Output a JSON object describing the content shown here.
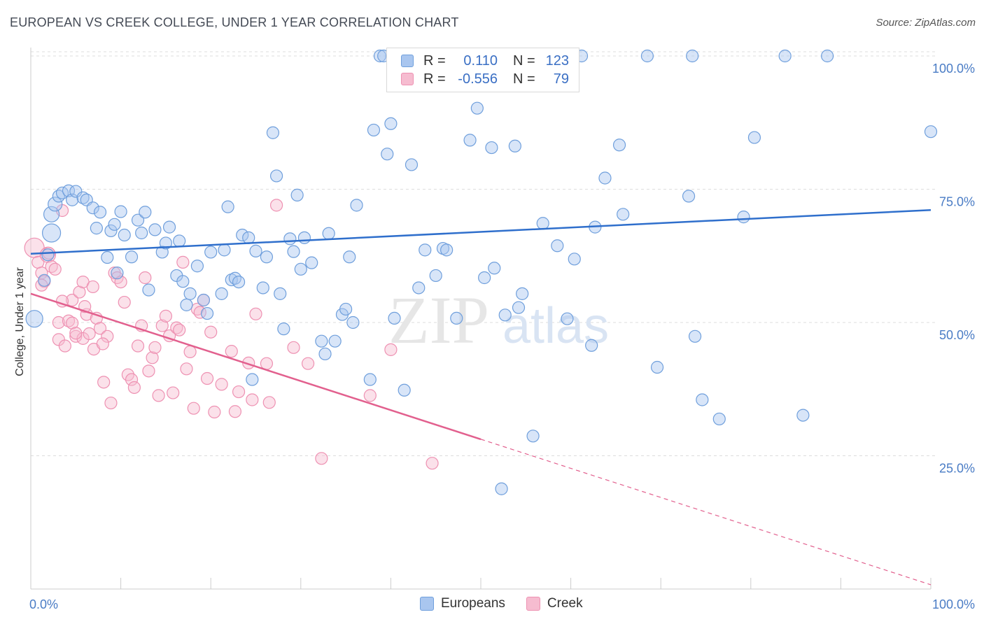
{
  "title": "EUROPEAN VS CREEK COLLEGE, UNDER 1 YEAR CORRELATION CHART",
  "source": "Source: ZipAtlas.com",
  "watermark": {
    "zip": "ZIP",
    "atlas": "atlas"
  },
  "legend_top": {
    "rows": [
      {
        "r_label": "R =",
        "r_value": "0.110",
        "n_label": "N =",
        "n_value": "123"
      },
      {
        "r_label": "R =",
        "r_value": "-0.556",
        "n_label": "N =",
        "n_value": "79"
      }
    ]
  },
  "legend_bottom": {
    "items": [
      "Europeans",
      "Creek"
    ]
  },
  "colors": {
    "europeans_fill": "#a9c6ef",
    "europeans_stroke": "#6f9fdc",
    "europeans_line": "#2f6fcc",
    "creek_fill": "#f6bcd0",
    "creek_stroke": "#ee91b2",
    "creek_line": "#e2608e",
    "grid": "#dddddd",
    "axis": "#cccccc",
    "tick_text": "#4a7cc5"
  },
  "chart_data": {
    "type": "scatter",
    "title": "EUROPEAN VS CREEK COLLEGE, UNDER 1 YEAR CORRELATION CHART",
    "xlabel": "",
    "ylabel": "College, Under 1 year",
    "xlim": [
      0,
      100
    ],
    "ylim": [
      0,
      100
    ],
    "x_tick_labels": [
      "0.0%",
      "100.0%"
    ],
    "y_tick_labels": [
      "25.0%",
      "50.0%",
      "75.0%",
      "100.0%"
    ],
    "y_ticks": [
      25,
      50,
      75,
      100
    ],
    "grid": true,
    "legend_position": "top-center",
    "series": [
      {
        "name": "Europeans",
        "r": 0.11,
        "n": 123,
        "trend": {
          "x": [
            0,
            100
          ],
          "y": [
            62.9,
            71.1
          ],
          "dashed_from": null
        },
        "points": [
          [
            0.4,
            50.7
          ],
          [
            1.5,
            57.9
          ],
          [
            1.9,
            62.7
          ],
          [
            2.3,
            66.8
          ],
          [
            2.3,
            70.3
          ],
          [
            2.7,
            72.2
          ],
          [
            3.1,
            73.7
          ],
          [
            3.5,
            74.3
          ],
          [
            4.2,
            74.7
          ],
          [
            4.6,
            73.0
          ],
          [
            5.0,
            74.6
          ],
          [
            5.8,
            73.4
          ],
          [
            6.2,
            73.0
          ],
          [
            6.9,
            71.5
          ],
          [
            7.3,
            67.7
          ],
          [
            7.7,
            70.7
          ],
          [
            8.5,
            62.2
          ],
          [
            8.9,
            67.2
          ],
          [
            9.3,
            68.4
          ],
          [
            9.6,
            59.3
          ],
          [
            10.0,
            70.8
          ],
          [
            10.4,
            66.4
          ],
          [
            11.2,
            62.3
          ],
          [
            11.9,
            69.2
          ],
          [
            12.3,
            66.8
          ],
          [
            12.7,
            70.7
          ],
          [
            13.1,
            56.1
          ],
          [
            13.8,
            67.4
          ],
          [
            14.6,
            63.2
          ],
          [
            15.0,
            64.9
          ],
          [
            15.4,
            67.9
          ],
          [
            16.2,
            58.8
          ],
          [
            16.5,
            65.3
          ],
          [
            16.9,
            57.7
          ],
          [
            17.3,
            53.3
          ],
          [
            17.7,
            55.4
          ],
          [
            18.5,
            60.6
          ],
          [
            19.2,
            54.2
          ],
          [
            19.6,
            51.7
          ],
          [
            20.0,
            63.2
          ],
          [
            21.2,
            55.4
          ],
          [
            21.5,
            63.6
          ],
          [
            21.9,
            71.7
          ],
          [
            22.3,
            58.0
          ],
          [
            22.7,
            58.3
          ],
          [
            23.1,
            57.6
          ],
          [
            23.5,
            66.4
          ],
          [
            24.2,
            65.9
          ],
          [
            24.6,
            39.3
          ],
          [
            25.0,
            63.4
          ],
          [
            25.8,
            56.5
          ],
          [
            26.2,
            62.3
          ],
          [
            26.9,
            85.6
          ],
          [
            27.3,
            77.5
          ],
          [
            27.7,
            55.4
          ],
          [
            28.1,
            48.8
          ],
          [
            28.8,
            65.7
          ],
          [
            29.2,
            63.3
          ],
          [
            29.6,
            73.9
          ],
          [
            30.0,
            60.0
          ],
          [
            30.4,
            65.9
          ],
          [
            31.2,
            61.2
          ],
          [
            32.3,
            46.5
          ],
          [
            32.7,
            44.1
          ],
          [
            33.1,
            66.7
          ],
          [
            33.8,
            46.5
          ],
          [
            34.6,
            51.5
          ],
          [
            35.0,
            52.5
          ],
          [
            35.4,
            62.3
          ],
          [
            35.8,
            50.0
          ],
          [
            36.2,
            72.0
          ],
          [
            37.7,
            39.3
          ],
          [
            38.1,
            86.1
          ],
          [
            38.8,
            100
          ],
          [
            39.2,
            100
          ],
          [
            39.6,
            81.6
          ],
          [
            40.0,
            87.3
          ],
          [
            40.4,
            50.8
          ],
          [
            41.5,
            37.3
          ],
          [
            42.3,
            79.6
          ],
          [
            43.1,
            56.5
          ],
          [
            43.8,
            63.6
          ],
          [
            45.0,
            58.8
          ],
          [
            45.8,
            63.9
          ],
          [
            46.2,
            63.6
          ],
          [
            47.3,
            50.8
          ],
          [
            48.1,
            100
          ],
          [
            48.8,
            84.2
          ],
          [
            49.6,
            90.2
          ],
          [
            50.4,
            58.4
          ],
          [
            51.2,
            82.8
          ],
          [
            51.5,
            60.2
          ],
          [
            52.3,
            18.8
          ],
          [
            52.7,
            51.4
          ],
          [
            53.8,
            83.1
          ],
          [
            54.2,
            52.8
          ],
          [
            54.6,
            55.4
          ],
          [
            55.8,
            28.7
          ],
          [
            56.9,
            68.6
          ],
          [
            58.5,
            64.4
          ],
          [
            59.6,
            50.7
          ],
          [
            60.4,
            61.9
          ],
          [
            61.2,
            100
          ],
          [
            62.3,
            45.7
          ],
          [
            62.7,
            67.9
          ],
          [
            63.8,
            77.1
          ],
          [
            65.4,
            83.3
          ],
          [
            65.8,
            70.3
          ],
          [
            68.5,
            100
          ],
          [
            69.6,
            41.6
          ],
          [
            73.1,
            73.7
          ],
          [
            73.5,
            100
          ],
          [
            73.8,
            47.4
          ],
          [
            74.6,
            35.5
          ],
          [
            76.5,
            31.9
          ],
          [
            79.2,
            69.8
          ],
          [
            80.4,
            84.7
          ],
          [
            83.8,
            100
          ],
          [
            85.8,
            32.6
          ],
          [
            88.5,
            100
          ],
          [
            100,
            85.8
          ]
        ]
      },
      {
        "name": "Creek",
        "r": -0.556,
        "n": 79,
        "trend": {
          "x": [
            0,
            100
          ],
          "y": [
            55.4,
            0.8
          ],
          "solid_until_x": 50.0
        },
        "points": [
          [
            0.4,
            64.0
          ],
          [
            0.8,
            61.3
          ],
          [
            1.2,
            59.3
          ],
          [
            1.5,
            57.7
          ],
          [
            1.9,
            62.7
          ],
          [
            2.3,
            60.5
          ],
          [
            2.7,
            60.0
          ],
          [
            3.1,
            46.8
          ],
          [
            3.1,
            50.0
          ],
          [
            3.5,
            71.0
          ],
          [
            3.8,
            45.6
          ],
          [
            4.2,
            50.3
          ],
          [
            4.6,
            49.9
          ],
          [
            4.6,
            54.2
          ],
          [
            5.0,
            47.4
          ],
          [
            5.4,
            55.7
          ],
          [
            5.8,
            57.6
          ],
          [
            5.8,
            47.0
          ],
          [
            6.2,
            51.5
          ],
          [
            6.5,
            47.9
          ],
          [
            6.9,
            56.7
          ],
          [
            7.3,
            50.8
          ],
          [
            7.7,
            48.9
          ],
          [
            8.1,
            38.8
          ],
          [
            8.5,
            47.4
          ],
          [
            8.9,
            34.9
          ],
          [
            9.3,
            59.3
          ],
          [
            9.6,
            58.4
          ],
          [
            10.0,
            57.6
          ],
          [
            10.4,
            53.8
          ],
          [
            10.8,
            40.2
          ],
          [
            11.2,
            39.3
          ],
          [
            11.5,
            37.8
          ],
          [
            11.9,
            45.6
          ],
          [
            12.3,
            49.4
          ],
          [
            12.7,
            58.4
          ],
          [
            13.1,
            40.9
          ],
          [
            13.5,
            43.4
          ],
          [
            13.8,
            45.3
          ],
          [
            14.2,
            36.3
          ],
          [
            14.6,
            49.4
          ],
          [
            15.0,
            51.2
          ],
          [
            15.4,
            47.5
          ],
          [
            15.8,
            36.8
          ],
          [
            16.2,
            49.0
          ],
          [
            16.5,
            48.6
          ],
          [
            16.9,
            61.3
          ],
          [
            17.3,
            41.3
          ],
          [
            17.7,
            44.5
          ],
          [
            18.1,
            33.9
          ],
          [
            18.5,
            52.5
          ],
          [
            18.8,
            51.9
          ],
          [
            19.2,
            54.2
          ],
          [
            19.6,
            39.5
          ],
          [
            20.0,
            48.2
          ],
          [
            20.4,
            33.2
          ],
          [
            21.2,
            38.4
          ],
          [
            22.3,
            44.6
          ],
          [
            22.7,
            33.3
          ],
          [
            23.1,
            37.0
          ],
          [
            24.2,
            42.4
          ],
          [
            24.6,
            35.5
          ],
          [
            25.0,
            51.6
          ],
          [
            26.2,
            42.3
          ],
          [
            26.5,
            35.0
          ],
          [
            27.3,
            72.0
          ],
          [
            29.2,
            45.3
          ],
          [
            30.8,
            42.3
          ],
          [
            32.3,
            24.5
          ],
          [
            37.7,
            36.3
          ],
          [
            40.0,
            44.9
          ],
          [
            44.6,
            23.6
          ],
          [
            1.2,
            57.0
          ],
          [
            2.0,
            63.0
          ],
          [
            3.5,
            54.0
          ],
          [
            5.0,
            48.0
          ],
          [
            6.0,
            53.0
          ],
          [
            7.0,
            45.0
          ],
          [
            8.0,
            46.0
          ]
        ]
      }
    ]
  }
}
